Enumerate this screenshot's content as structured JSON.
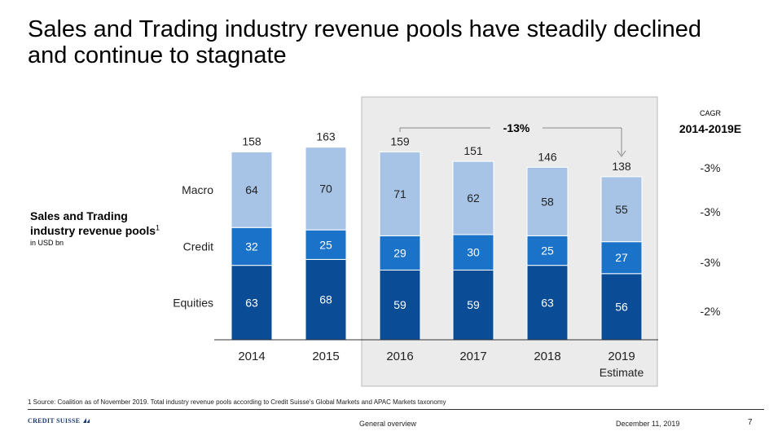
{
  "slide": {
    "title_line1": "Sales and Trading industry revenue pools have steadily declined",
    "title_line2": "and continue to stagnate",
    "side_label_line1": "Sales and Trading",
    "side_label_line2": "industry revenue pools",
    "side_label_sup": "1",
    "side_label_unit": "in USD bn",
    "footnote": "1 Source: Coalition as of November 2019. Total industry revenue pools according to Credit Suisse's Global Markets and APAC Markets taxonomy",
    "logo_text": "CREDIT SUISSE",
    "footer_center": "General overview",
    "footer_date": "December 11, 2019",
    "page_number": "7"
  },
  "cagr": {
    "title": "CAGR",
    "period": "2014-2019E",
    "values": [
      "-3%",
      "-3%",
      "-3%",
      "-2%"
    ]
  },
  "chart_data": {
    "type": "bar",
    "stacked": true,
    "categories": [
      "2014",
      "2015",
      "2016",
      "2017",
      "2018",
      "2019"
    ],
    "category_sublabels": [
      "",
      "",
      "",
      "",
      "",
      "Estimate"
    ],
    "series": [
      {
        "name": "Equities",
        "values": [
          63,
          68,
          59,
          59,
          63,
          56
        ]
      },
      {
        "name": "Credit",
        "values": [
          32,
          25,
          29,
          30,
          25,
          27
        ]
      },
      {
        "name": "Macro",
        "values": [
          64,
          70,
          71,
          62,
          58,
          55
        ]
      }
    ],
    "totals": [
      158,
      163,
      159,
      151,
      146,
      138
    ],
    "annotation": "-13%",
    "highlighted_categories": [
      "2016",
      "2017",
      "2018",
      "2019"
    ],
    "colors": {
      "Equities": "#0a4d96",
      "Credit": "#1b73c9",
      "Macro": "#a7c4e6",
      "highlight_bg": "#ebebeb",
      "highlight_border": "#b8b8b8"
    }
  }
}
